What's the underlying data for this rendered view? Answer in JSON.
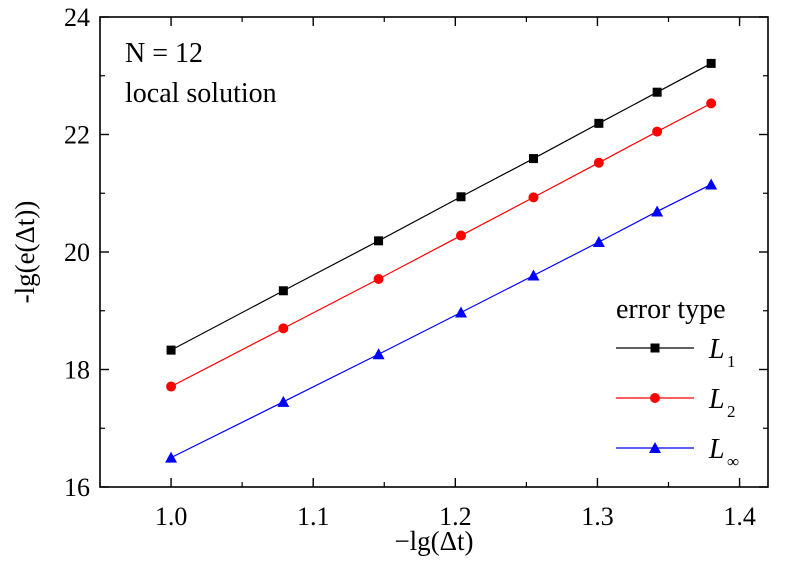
{
  "chart_data": {
    "type": "line",
    "xlabel": "−lg(Δt)",
    "ylabel": "-lg(e(Δt))",
    "xlim": [
      0.95,
      1.42
    ],
    "ylim": [
      16,
      24
    ],
    "x_ticks": [
      "1.0",
      "1.1",
      "1.2",
      "1.3",
      "1.4"
    ],
    "y_ticks": [
      "16",
      "18",
      "20",
      "22",
      "24"
    ],
    "annotations": [
      "N = 12",
      "local solution"
    ],
    "legend_title": "error type",
    "legend_position": "bottom-right",
    "series": [
      {
        "name": "L1",
        "label_main": "L",
        "label_sub": "1",
        "color": "#000000",
        "marker": "square",
        "x": [
          1.0,
          1.079,
          1.146,
          1.204,
          1.255,
          1.301,
          1.342,
          1.38
        ],
        "y": [
          18.33,
          19.34,
          20.19,
          20.94,
          21.59,
          22.19,
          22.72,
          23.21
        ]
      },
      {
        "name": "L2",
        "label_main": "L",
        "label_sub": "2",
        "color": "#ff0000",
        "marker": "circle",
        "x": [
          1.0,
          1.079,
          1.146,
          1.204,
          1.255,
          1.301,
          1.342,
          1.38
        ],
        "y": [
          17.71,
          18.7,
          19.54,
          20.28,
          20.93,
          21.52,
          22.05,
          22.53
        ]
      },
      {
        "name": "L∞",
        "label_main": "L",
        "label_sub": "∞",
        "color": "#0000ff",
        "marker": "triangle",
        "x": [
          1.0,
          1.079,
          1.146,
          1.204,
          1.255,
          1.301,
          1.342,
          1.38
        ],
        "y": [
          16.5,
          17.45,
          18.26,
          18.97,
          19.6,
          20.17,
          20.69,
          21.15
        ]
      }
    ]
  }
}
